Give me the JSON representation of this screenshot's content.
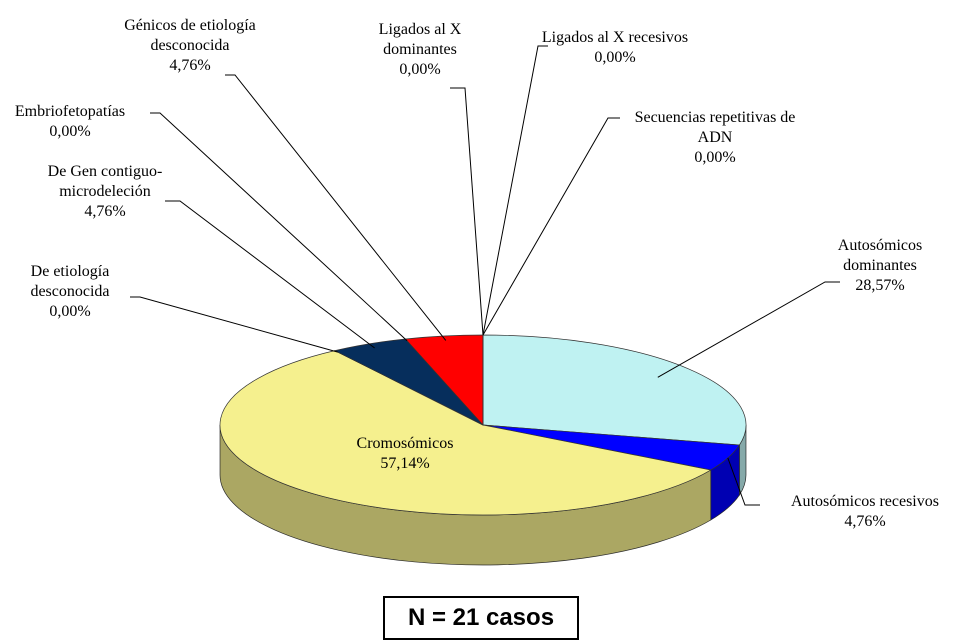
{
  "chart_data": {
    "type": "pie3d",
    "categories": [
      "Autosómicos dominantes",
      "Autosómicos recesivos",
      "Cromosómicos",
      "De etiología desconocida",
      "De Gen contiguo-microdeleción",
      "Embriofetopatías",
      "Génicos de etiología desconocida",
      "Ligados al X dominantes",
      "Ligados al X recesivos",
      "Secuencias repetitivas de ADN"
    ],
    "values": [
      28.57,
      4.76,
      57.14,
      0,
      4.76,
      0,
      4.76,
      0,
      0,
      0
    ],
    "value_labels": [
      "28,57%",
      "4,76%",
      "57,14%",
      "0,00%",
      "4,76%",
      "0,00%",
      "4,76%",
      "0,00%",
      "0,00%",
      "0,00%"
    ],
    "colors": [
      "#bff2f2",
      "#0000ff",
      "#f5f08e",
      null,
      "#062e5c",
      null,
      "#ff0000",
      null,
      null,
      null
    ],
    "annotation": "N = 21 casos"
  }
}
